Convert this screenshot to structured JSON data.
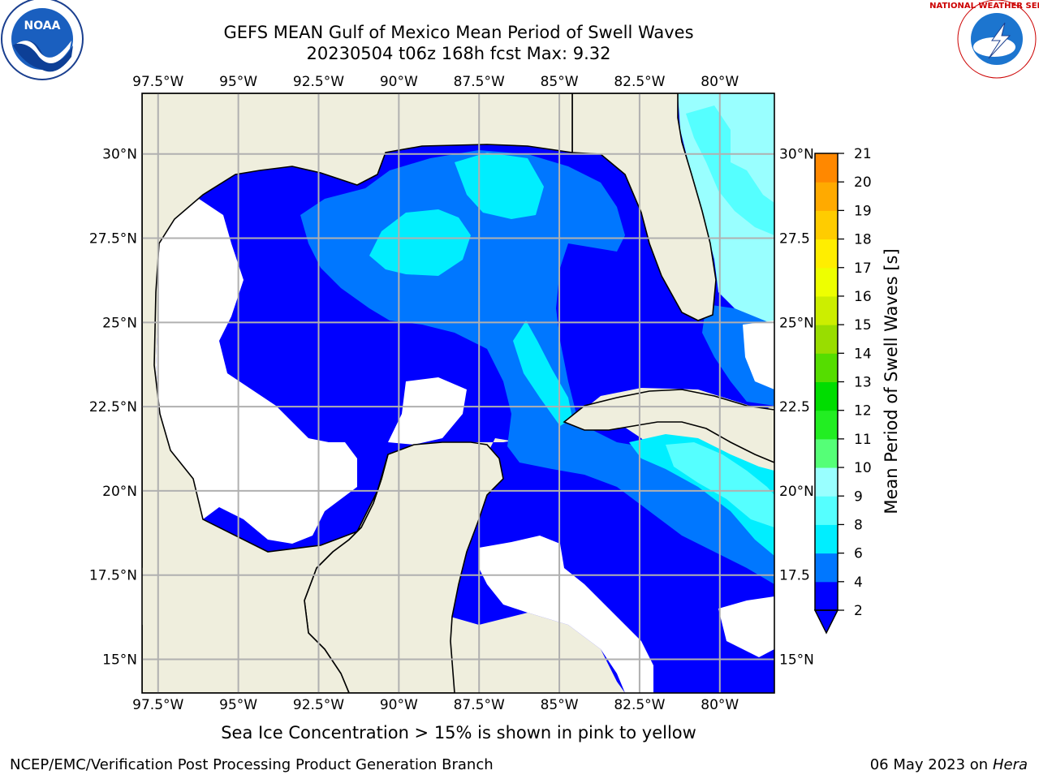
{
  "title_line1": "GEFS MEAN Gulf of Mexico Mean Period of Swell Waves",
  "title_line2": "20230504 t06z 168h fcst   Max: 9.32",
  "lon_labels": [
    "97.5°W",
    "95°W",
    "92.5°W",
    "90°W",
    "87.5°W",
    "85°W",
    "82.5°W",
    "80°W"
  ],
  "lon_values": [
    -97.5,
    -95,
    -92.5,
    -90,
    -87.5,
    -85,
    -82.5,
    -80
  ],
  "lat_labels": [
    "30°N",
    "27.5°N",
    "25°N",
    "22.5°N",
    "20°N",
    "17.5°N",
    "15°N"
  ],
  "lat_values": [
    30,
    27.5,
    25,
    22.5,
    20,
    17.5,
    15
  ],
  "lat_labels_right": [
    "30°N",
    "27.5",
    "25°N",
    "22.5",
    "20°N",
    "17.5",
    "15°N"
  ],
  "map_extent": {
    "lon_min": -98,
    "lon_max": -78.3,
    "lat_min": 14,
    "lat_max": 31.8
  },
  "colorbar": {
    "label": "Mean Period of Swell Waves [s]",
    "ticks": [
      2,
      4,
      6,
      8,
      9,
      10,
      11,
      12,
      13,
      14,
      15,
      16,
      17,
      18,
      19,
      20,
      21
    ],
    "colors": [
      "#0000ff",
      "#0077ff",
      "#00eeff",
      "#55ffff",
      "#99ffff",
      "#55ff77",
      "#22ee22",
      "#00dd00",
      "#55dd00",
      "#99dd00",
      "#ccee00",
      "#eeff00",
      "#ffee00",
      "#ffcc00",
      "#ffaa00",
      "#ff8800",
      "#ff5500",
      "#ff2200",
      "#ff0000"
    ],
    "extend": "min"
  },
  "ice_note": "Sea Ice Concentration > 15% is shown in pink to yellow",
  "footer_left": "NCEP/EMC/Verification Post Processing Product Generation Branch",
  "footer_right_date": "06 May 2023 on",
  "footer_right_host": "Hera",
  "logos": {
    "left": "NOAA",
    "right": "NATIONAL WEATHER SERVICE"
  }
}
